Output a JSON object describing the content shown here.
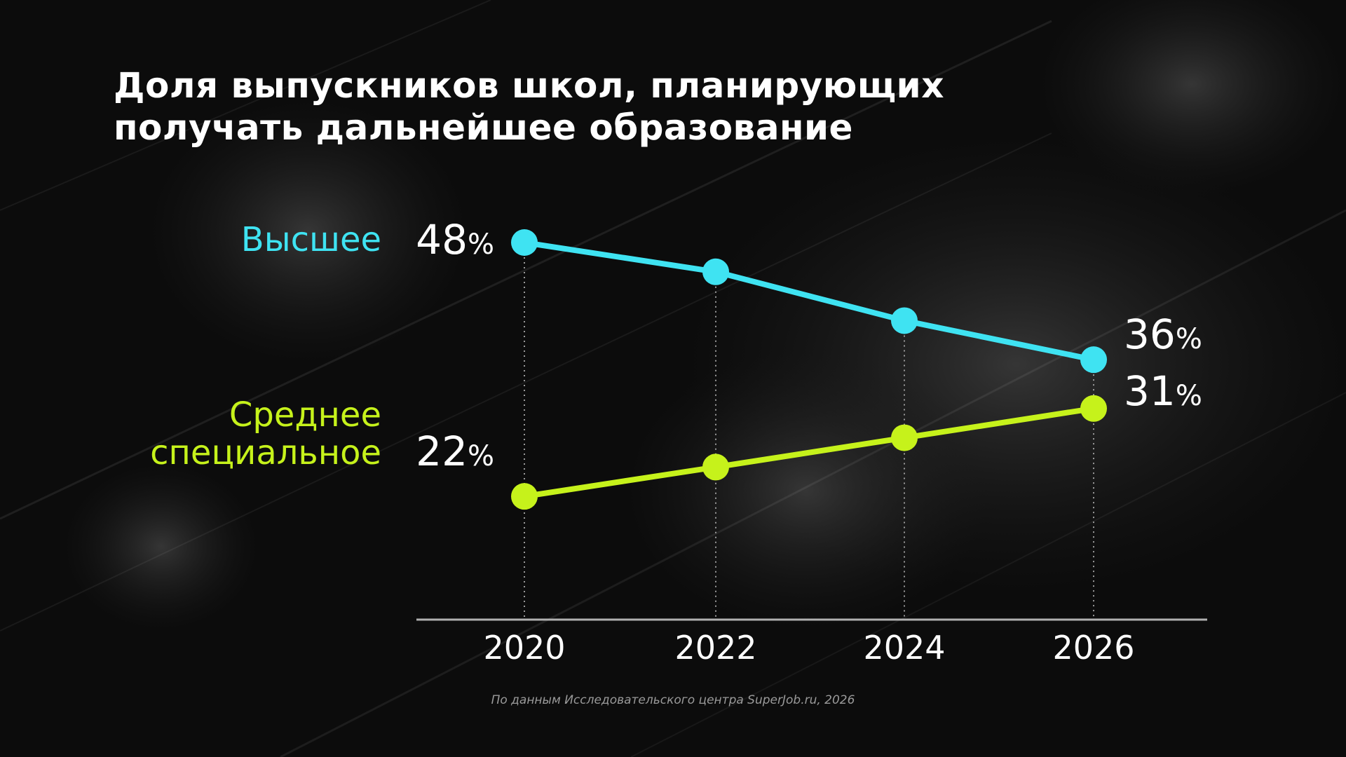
{
  "title": {
    "line1": "Доля выпускников школ, планирующих",
    "line2": "получать дальнейшее образование"
  },
  "source": "По данным Исследовательского центра SuperJob.ru, 2026",
  "colors": {
    "background": "#0c0c0c",
    "higher": "#3fe3f2",
    "secondary": "#c6f21b",
    "axis": "#b0b0b0",
    "text": "#ffffff"
  },
  "chart_data": {
    "type": "line",
    "title": "Доля выпускников школ, планирующих получать дальнейшее образование",
    "x": [
      "2020",
      "2022",
      "2024",
      "2026"
    ],
    "ylim": [
      20,
      50
    ],
    "grid": false,
    "legend": "left",
    "series": [
      {
        "name": "Высшее",
        "values": [
          48,
          45,
          40,
          36
        ],
        "start_label": "48",
        "end_label": "36",
        "color": "#3fe3f2"
      },
      {
        "name": "Среднее специальное",
        "name_lines": [
          "Среднее",
          "специальное"
        ],
        "values": [
          22,
          25,
          28,
          31
        ],
        "start_label": "22",
        "end_label": "31",
        "color": "#c6f21b"
      }
    ],
    "unit": "%"
  }
}
